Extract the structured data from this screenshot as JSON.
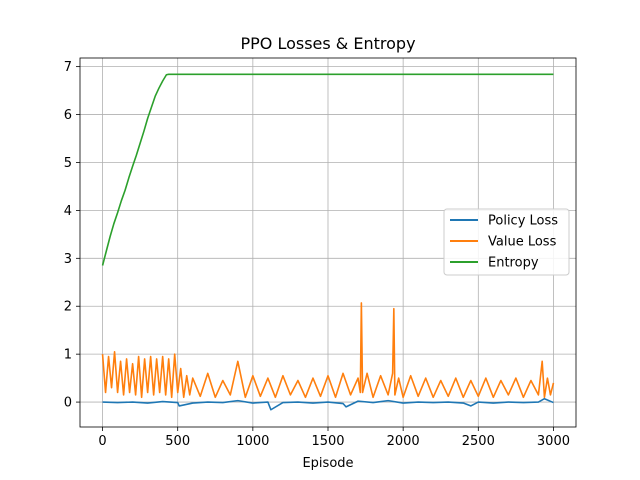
{
  "chart_data": {
    "type": "line",
    "title": "PPO Losses & Entropy",
    "xlabel": "Episode",
    "ylabel": "",
    "xlim": [
      -150,
      3150
    ],
    "ylim": [
      -0.52,
      7.18
    ],
    "xticks": [
      0,
      500,
      1000,
      1500,
      2000,
      2500,
      3000
    ],
    "yticks": [
      0,
      1,
      2,
      3,
      4,
      5,
      6,
      7
    ],
    "grid": true,
    "legend_position": "center-right",
    "series": [
      {
        "name": "Policy Loss",
        "color": "#1f77b4",
        "x": [
          0,
          100,
          200,
          300,
          400,
          500,
          510,
          600,
          700,
          800,
          900,
          1000,
          1100,
          1120,
          1200,
          1300,
          1400,
          1500,
          1600,
          1620,
          1700,
          1800,
          1900,
          2000,
          2100,
          2200,
          2300,
          2400,
          2450,
          2500,
          2600,
          2700,
          2800,
          2900,
          2940,
          3000
        ],
        "y": [
          0.0,
          -0.01,
          0.0,
          -0.02,
          0.01,
          -0.01,
          -0.08,
          -0.02,
          0.0,
          -0.01,
          0.03,
          -0.02,
          0.0,
          -0.16,
          -0.01,
          0.0,
          -0.02,
          0.0,
          -0.03,
          -0.1,
          0.02,
          -0.01,
          0.03,
          -0.02,
          0.0,
          -0.01,
          0.0,
          -0.02,
          -0.08,
          0.0,
          -0.02,
          0.0,
          -0.01,
          0.0,
          0.07,
          -0.01
        ]
      },
      {
        "name": "Value Loss",
        "color": "#ff7f0e",
        "x": [
          0,
          20,
          40,
          60,
          80,
          100,
          120,
          140,
          160,
          180,
          200,
          220,
          240,
          260,
          280,
          300,
          320,
          340,
          360,
          380,
          400,
          420,
          440,
          460,
          480,
          500,
          520,
          540,
          560,
          580,
          600,
          650,
          700,
          750,
          800,
          850,
          900,
          950,
          1000,
          1050,
          1100,
          1150,
          1200,
          1250,
          1300,
          1350,
          1400,
          1450,
          1500,
          1550,
          1600,
          1650,
          1700,
          1715,
          1722,
          1730,
          1760,
          1800,
          1850,
          1900,
          1930,
          1938,
          1945,
          1970,
          2000,
          2050,
          2100,
          2150,
          2200,
          2250,
          2300,
          2350,
          2400,
          2450,
          2500,
          2550,
          2600,
          2650,
          2700,
          2750,
          2800,
          2850,
          2900,
          2925,
          2940,
          2960,
          2980,
          3000
        ],
        "y": [
          1.0,
          0.2,
          0.95,
          0.3,
          1.05,
          0.2,
          0.85,
          0.15,
          0.9,
          0.2,
          0.8,
          0.15,
          0.95,
          0.1,
          0.9,
          0.2,
          0.95,
          0.15,
          0.9,
          0.2,
          0.95,
          0.15,
          0.9,
          0.1,
          1.0,
          0.2,
          0.7,
          0.1,
          0.55,
          0.15,
          0.5,
          0.12,
          0.6,
          0.1,
          0.45,
          0.15,
          0.85,
          0.1,
          0.55,
          0.12,
          0.5,
          0.1,
          0.55,
          0.15,
          0.45,
          0.1,
          0.5,
          0.12,
          0.55,
          0.1,
          0.6,
          0.15,
          0.5,
          0.2,
          2.07,
          0.2,
          0.6,
          0.1,
          0.55,
          0.15,
          0.6,
          1.95,
          0.15,
          0.5,
          0.1,
          0.55,
          0.12,
          0.5,
          0.1,
          0.45,
          0.12,
          0.5,
          0.1,
          0.45,
          0.12,
          0.5,
          0.1,
          0.45,
          0.15,
          0.5,
          0.1,
          0.45,
          0.15,
          0.85,
          0.1,
          0.5,
          0.15,
          0.4
        ]
      },
      {
        "name": "Entropy",
        "color": "#2ca02c",
        "x": [
          0,
          25,
          50,
          75,
          100,
          125,
          150,
          175,
          200,
          225,
          250,
          275,
          300,
          325,
          350,
          375,
          400,
          425,
          440,
          500,
          1000,
          1500,
          2000,
          2500,
          3000
        ],
        "y": [
          2.85,
          3.15,
          3.45,
          3.72,
          3.95,
          4.2,
          4.42,
          4.68,
          4.92,
          5.15,
          5.4,
          5.65,
          5.92,
          6.15,
          6.38,
          6.55,
          6.7,
          6.83,
          6.84,
          6.84,
          6.84,
          6.84,
          6.84,
          6.84,
          6.84
        ]
      }
    ]
  }
}
